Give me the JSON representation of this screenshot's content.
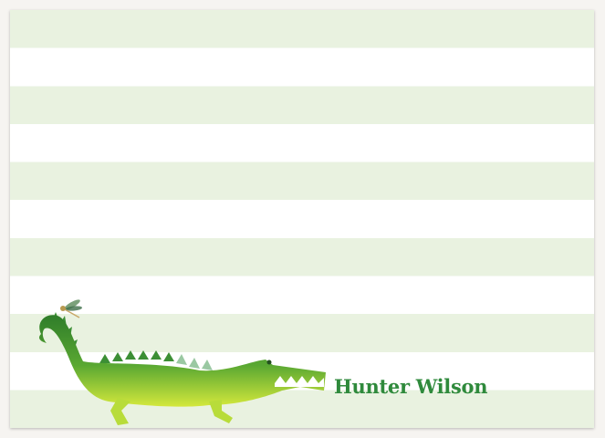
{
  "card": {
    "name": "Hunter Wilson",
    "illustration": "watercolor-crocodile-with-dragonfly",
    "colors": {
      "stripe": "#e9f2e0",
      "text": "#2f8a3c",
      "croc_dark": "#2f7d2a",
      "croc_light": "#c8e43a"
    }
  }
}
